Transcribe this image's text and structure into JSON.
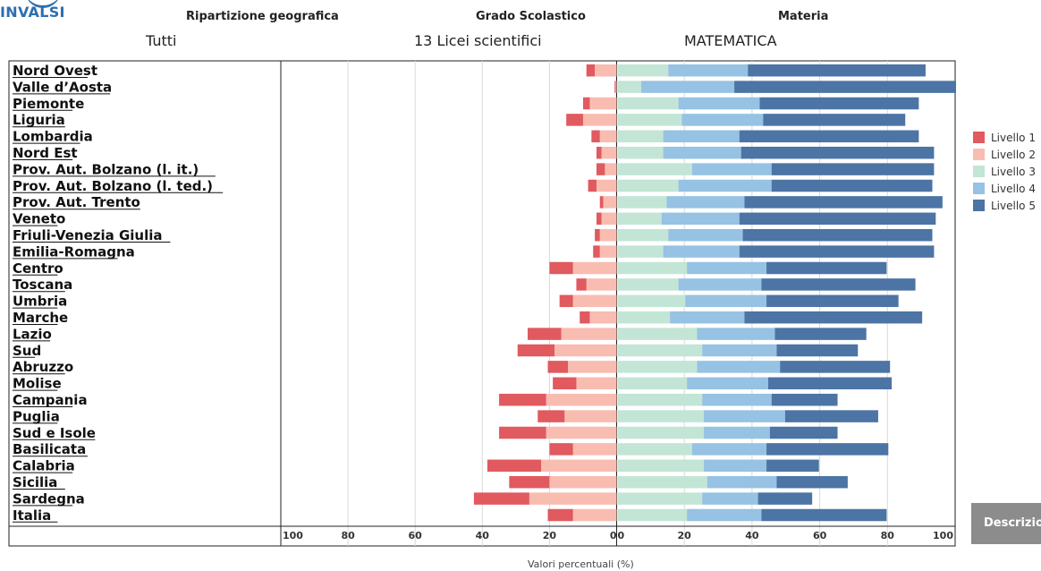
{
  "logo": {
    "text": "INVALSI"
  },
  "filters": [
    {
      "header": "Ripartizione geografica",
      "value": "Tutti"
    },
    {
      "header": "Grado Scolastico",
      "value": "13 Licei scientifici"
    },
    {
      "header": "Materia",
      "value": "MATEMATICA"
    }
  ],
  "legend": [
    {
      "label": "Livello 1",
      "color": "#e05a5f"
    },
    {
      "label": "Livello 2",
      "color": "#f9bcb1"
    },
    {
      "label": "Livello 3",
      "color": "#c2e5d6"
    },
    {
      "label": "Livello 4",
      "color": "#96c2e3"
    },
    {
      "label": "Livello 5",
      "color": "#4c74a5"
    }
  ],
  "button": {
    "label": "Descrizio"
  },
  "chart_data": {
    "type": "bar",
    "orientation": "horizontal-diverging",
    "xlabel": "Valori percentuali (%)",
    "left_ticks": [
      "100",
      "80",
      "60",
      "40",
      "20",
      "0"
    ],
    "right_ticks": [
      "0",
      "20",
      "40",
      "60",
      "80",
      "100"
    ],
    "xlim_left": [
      100,
      0
    ],
    "xlim_right": [
      0,
      100
    ],
    "categories": [
      "Nord Ovest",
      "Valle d’Aosta",
      "Piemonte",
      "Liguria",
      "Lombardia",
      "Nord Est",
      "Prov. Aut. Bolzano (l. it.)",
      "Prov. Aut. Bolzano (l. ted.)",
      "Prov. Aut. Trento",
      "Veneto",
      "Friuli-Venezia Giulia",
      "Emilia-Romagna",
      "Centro",
      "Toscana",
      "Umbria",
      "Marche",
      "Lazio",
      "Sud",
      "Abruzzo",
      "Molise",
      "Campania",
      "Puglia",
      "Sud e Isole",
      "Basilicata",
      "Calabria",
      "Sicilia",
      "Sardegna",
      "Italia"
    ],
    "series": [
      {
        "name": "Livello 1",
        "values": [
          2.5,
          0.3,
          2,
          5,
          2.5,
          1.5,
          2.5,
          2.5,
          1,
          1.5,
          1.5,
          2,
          7,
          3,
          4,
          3,
          10,
          11,
          6,
          7,
          14,
          8,
          14,
          7,
          16,
          12,
          16.5,
          7.5
        ]
      },
      {
        "name": "Livello 2",
        "values": [
          6.5,
          0.3,
          8,
          10,
          5,
          4.5,
          3.5,
          6,
          4,
          4.5,
          5,
          5,
          13,
          9,
          13,
          8,
          16.5,
          18.5,
          14.5,
          12,
          21,
          15.5,
          21,
          13,
          22.5,
          20,
          26,
          13
        ]
      },
      {
        "name": "Livello 3",
        "values": [
          15,
          7,
          18,
          19,
          13.5,
          13.5,
          22,
          18,
          14.5,
          13,
          15,
          13.5,
          20.5,
          18,
          20,
          15.5,
          23.5,
          25,
          23.5,
          20.5,
          25,
          25.5,
          25.5,
          22,
          25.5,
          26.5,
          25,
          20.5
        ]
      },
      {
        "name": "Livello 4",
        "values": [
          23.5,
          27.5,
          24,
          24,
          22.5,
          23,
          23.5,
          27.5,
          23,
          23,
          22,
          22.5,
          23.5,
          24.5,
          24,
          22,
          23,
          22,
          24.5,
          24,
          20.5,
          24,
          19.5,
          22,
          18.5,
          20.5,
          16.5,
          22
        ]
      },
      {
        "name": "Livello 5",
        "values": [
          52.5,
          65.5,
          47,
          42,
          53,
          57,
          48,
          47.5,
          58.5,
          58,
          56,
          57.5,
          35.5,
          45.5,
          39,
          52.5,
          27,
          24,
          32.5,
          36.5,
          19.5,
          27.5,
          20,
          36,
          15.5,
          21,
          16,
          37
        ]
      }
    ]
  }
}
